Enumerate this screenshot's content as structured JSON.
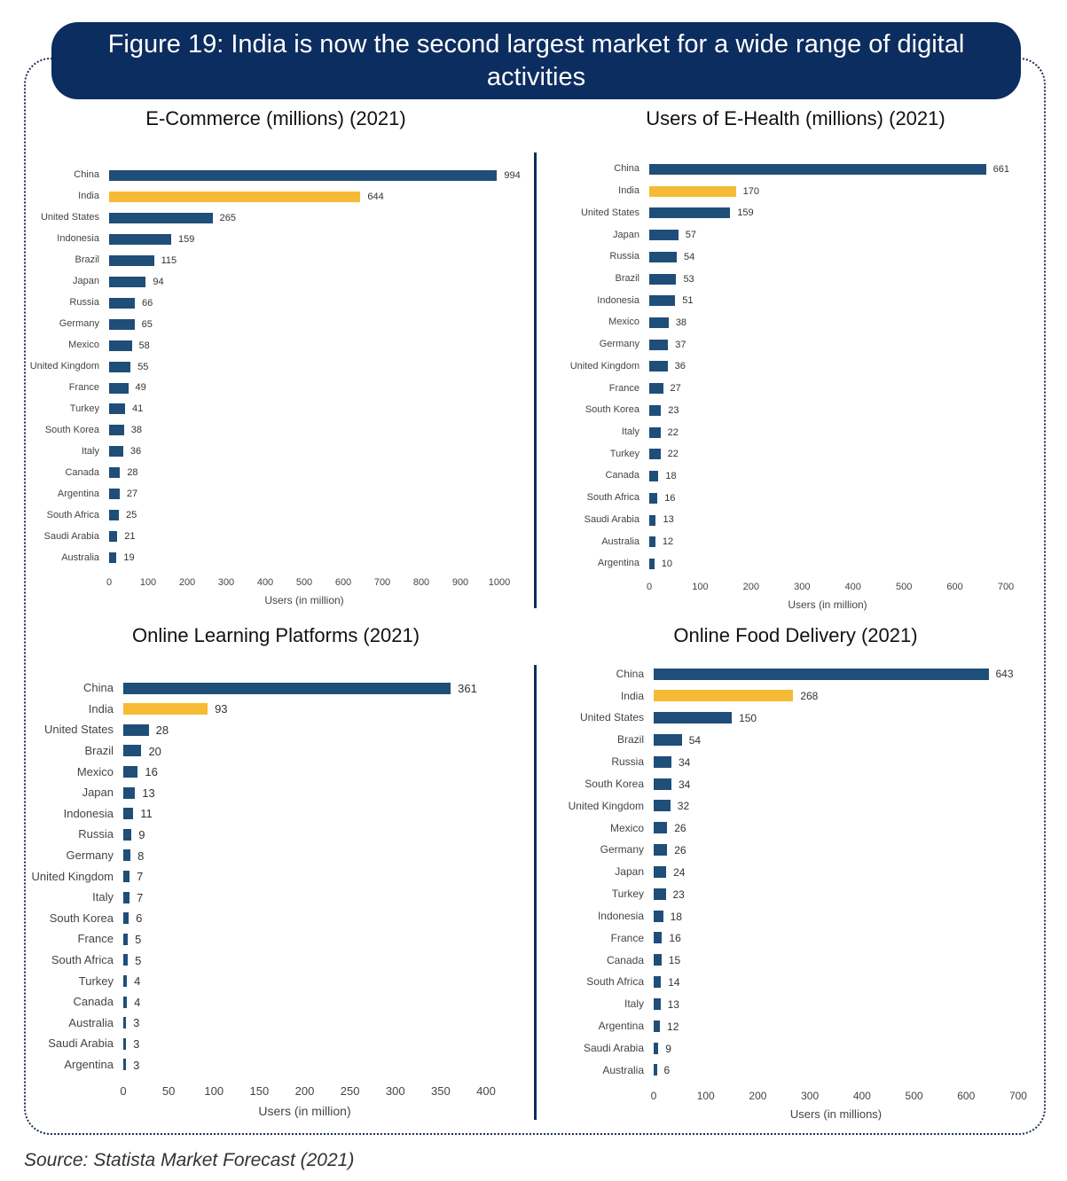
{
  "header": {
    "title": "Figure 19: India is now the second largest market for a wide range of digital activities"
  },
  "source": "Source: Statista Market Forecast (2021)",
  "colors": {
    "bar": "#1f4e79",
    "highlight": "#f6bb34",
    "header": "#0c2d5f"
  },
  "chart_data": [
    {
      "type": "bar",
      "orientation": "horizontal",
      "title": "E-Commerce (millions) (2021)",
      "xlabel": "Users (in million)",
      "xlim": [
        0,
        1000
      ],
      "ticks": [
        "0",
        "100",
        "200",
        "300",
        "400",
        "500",
        "600",
        "700",
        "800",
        "900",
        "1000"
      ],
      "highlight": "India",
      "categories": [
        "China",
        "India",
        "United States",
        "Indonesia",
        "Brazil",
        "Japan",
        "Russia",
        "Germany",
        "Mexico",
        "United Kingdom",
        "France",
        "Turkey",
        "South Korea",
        "Italy",
        "Canada",
        "Argentina",
        "South Africa",
        "Saudi Arabia",
        "Australia"
      ],
      "values": [
        994,
        644,
        265,
        159,
        115,
        94,
        66,
        65,
        58,
        55,
        49,
        41,
        38,
        36,
        28,
        27,
        25,
        21,
        19
      ]
    },
    {
      "type": "bar",
      "orientation": "horizontal",
      "title": "Users of E-Health (millions) (2021)",
      "xlabel": "Users (in million)",
      "xlim": [
        0,
        700
      ],
      "ticks": [
        "0",
        "100",
        "200",
        "300",
        "400",
        "500",
        "600",
        "700"
      ],
      "highlight": "India",
      "categories": [
        "China",
        "India",
        "United States",
        "Japan",
        "Russia",
        "Brazil",
        "Indonesia",
        "Mexico",
        "Germany",
        "United Kingdom",
        "France",
        "South Korea",
        "Italy",
        "Turkey",
        "Canada",
        "South Africa",
        "Saudi Arabia",
        "Australia",
        "Argentina"
      ],
      "values": [
        661,
        170,
        159,
        57,
        54,
        53,
        51,
        38,
        37,
        36,
        27,
        23,
        22,
        22,
        18,
        16,
        13,
        12,
        10
      ]
    },
    {
      "type": "bar",
      "orientation": "horizontal",
      "title": "Online Learning Platforms (2021)",
      "xlabel": "Users (in million)",
      "xlim": [
        0,
        400
      ],
      "ticks": [
        "0",
        "50",
        "100",
        "150",
        "200",
        "250",
        "300",
        "350",
        "400"
      ],
      "highlight": "India",
      "categories": [
        "China",
        "India",
        "United States",
        "Brazil",
        "Mexico",
        "Japan",
        "Indonesia",
        "Russia",
        "Germany",
        "United Kingdom",
        "Italy",
        "South Korea",
        "France",
        "South Africa",
        "Turkey",
        "Canada",
        "Australia",
        "Saudi Arabia",
        "Argentina"
      ],
      "values": [
        361,
        93,
        28,
        20,
        16,
        13,
        11,
        9,
        8,
        7,
        7,
        6,
        5,
        5,
        4,
        4,
        3,
        3,
        3
      ]
    },
    {
      "type": "bar",
      "orientation": "horizontal",
      "title": "Online Food Delivery (2021)",
      "xlabel": "Users (in millions)",
      "xlim": [
        0,
        700
      ],
      "ticks": [
        "0",
        "100",
        "200",
        "300",
        "400",
        "500",
        "600",
        "700"
      ],
      "highlight": "India",
      "categories": [
        "China",
        "India",
        "United States",
        "Brazil",
        "Russia",
        "South Korea",
        "United Kingdom",
        "Mexico",
        "Germany",
        "Japan",
        "Turkey",
        "Indonesia",
        "France",
        "Canada",
        "South Africa",
        "Italy",
        "Argentina",
        "Saudi Arabia",
        "Australia"
      ],
      "values": [
        643,
        268,
        150,
        54,
        34,
        34,
        32,
        26,
        26,
        24,
        23,
        18,
        16,
        15,
        14,
        13,
        12,
        9,
        6
      ]
    }
  ]
}
